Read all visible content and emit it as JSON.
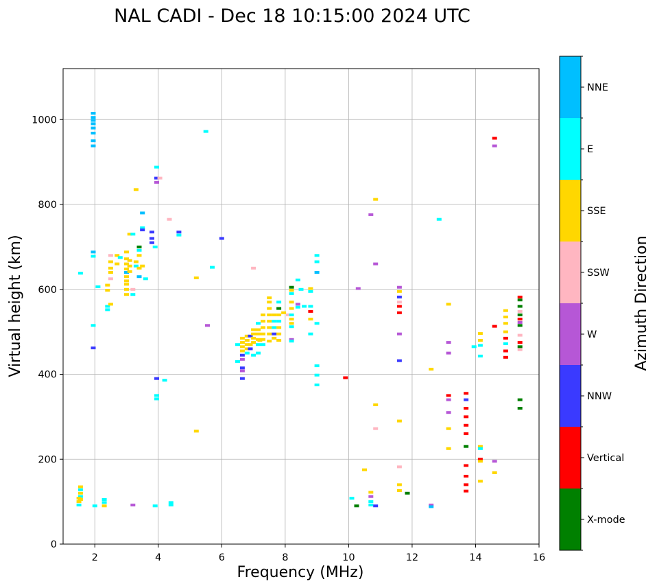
{
  "chart_data": {
    "type": "scatter",
    "title": "NAL CADI - Dec 18 10:15:00 2024 UTC",
    "xlabel": "Frequency (MHz)",
    "ylabel": "Virtual height (km)",
    "xlim": [
      1,
      16
    ],
    "ylim": [
      0,
      1120
    ],
    "xticks": [
      2,
      4,
      6,
      8,
      10,
      12,
      14,
      16
    ],
    "yticks": [
      0,
      200,
      400,
      600,
      800,
      1000
    ],
    "grid": true,
    "colorbar": {
      "label": "Azimuth Direction",
      "categories": [
        {
          "name": "X-mode",
          "color": "#008000"
        },
        {
          "name": "Vertical",
          "color": "#ff0000"
        },
        {
          "name": "NNW",
          "color": "#3a3aff"
        },
        {
          "name": "W",
          "color": "#b657d6"
        },
        {
          "name": "SSW",
          "color": "#ffb6c1"
        },
        {
          "name": "SSE",
          "color": "#ffd700"
        },
        {
          "name": "E",
          "color": "#00ffff"
        },
        {
          "name": "NNE",
          "color": "#00bfff"
        }
      ]
    },
    "points": [
      [
        1.95,
        1015,
        "NNE"
      ],
      [
        1.95,
        1005,
        "NNE"
      ],
      [
        1.95,
        998,
        "NNE"
      ],
      [
        1.95,
        990,
        "NNE"
      ],
      [
        1.95,
        980,
        "NNE"
      ],
      [
        1.95,
        968,
        "NNE"
      ],
      [
        1.95,
        950,
        "NNE"
      ],
      [
        1.95,
        938,
        "NNE"
      ],
      [
        1.95,
        688,
        "NNE"
      ],
      [
        1.95,
        678,
        "E"
      ],
      [
        1.95,
        515,
        "E"
      ],
      [
        1.95,
        462,
        "NNW"
      ],
      [
        1.55,
        638,
        "E"
      ],
      [
        1.55,
        135,
        "SSE"
      ],
      [
        1.55,
        128,
        "E"
      ],
      [
        1.55,
        120,
        "SSE"
      ],
      [
        1.55,
        112,
        "E"
      ],
      [
        1.55,
        105,
        "SSE"
      ],
      [
        1.5,
        108,
        "SSE"
      ],
      [
        1.5,
        100,
        "SSE"
      ],
      [
        1.5,
        92,
        "E"
      ],
      [
        2.1,
        606,
        "E"
      ],
      [
        2.3,
        105,
        "E"
      ],
      [
        2.3,
        98,
        "E"
      ],
      [
        2.3,
        90,
        "SSE"
      ],
      [
        2.0,
        90,
        "E"
      ],
      [
        2.4,
        610,
        "SSE"
      ],
      [
        2.4,
        598,
        "SSE"
      ],
      [
        2.4,
        560,
        "E"
      ],
      [
        2.4,
        552,
        "E"
      ],
      [
        2.5,
        565,
        "SSE"
      ],
      [
        2.5,
        680,
        "SSW"
      ],
      [
        2.5,
        665,
        "SSE"
      ],
      [
        2.5,
        650,
        "SSE"
      ],
      [
        2.5,
        640,
        "SSE"
      ],
      [
        2.5,
        625,
        "SSW"
      ],
      [
        2.7,
        680,
        "SSE"
      ],
      [
        2.7,
        660,
        "SSE"
      ],
      [
        2.8,
        675,
        "E"
      ],
      [
        3.0,
        688,
        "SSE"
      ],
      [
        3.0,
        672,
        "SSE"
      ],
      [
        3.0,
        660,
        "SSE"
      ],
      [
        3.0,
        648,
        "SSE"
      ],
      [
        3.0,
        640,
        "NNE"
      ],
      [
        3.0,
        630,
        "SSE"
      ],
      [
        3.0,
        620,
        "SSE"
      ],
      [
        3.0,
        612,
        "SSE"
      ],
      [
        3.0,
        600,
        "SSE"
      ],
      [
        3.0,
        588,
        "SSE"
      ],
      [
        3.1,
        730,
        "SSE"
      ],
      [
        3.1,
        668,
        "SSE"
      ],
      [
        3.1,
        655,
        "SSE"
      ],
      [
        3.1,
        642,
        "SSE"
      ],
      [
        3.2,
        600,
        "SSW"
      ],
      [
        3.2,
        588,
        "E"
      ],
      [
        3.2,
        730,
        "E"
      ],
      [
        3.3,
        835,
        "SSE"
      ],
      [
        3.3,
        665,
        "SSE"
      ],
      [
        3.3,
        655,
        "E"
      ],
      [
        3.4,
        700,
        "X-mode"
      ],
      [
        3.4,
        692,
        "E"
      ],
      [
        3.4,
        680,
        "SSE"
      ],
      [
        3.4,
        650,
        "SSE"
      ],
      [
        3.4,
        630,
        "NNE"
      ],
      [
        3.5,
        780,
        "NNE"
      ],
      [
        3.5,
        745,
        "E"
      ],
      [
        3.5,
        740,
        "NNW"
      ],
      [
        3.5,
        655,
        "SSE"
      ],
      [
        3.6,
        625,
        "E"
      ],
      [
        3.8,
        735,
        "NNW"
      ],
      [
        3.8,
        720,
        "NNW"
      ],
      [
        3.8,
        710,
        "NNW"
      ],
      [
        3.9,
        700,
        "E"
      ],
      [
        3.95,
        888,
        "E"
      ],
      [
        3.95,
        862,
        "NNW"
      ],
      [
        4.05,
        862,
        "SSW"
      ],
      [
        3.95,
        852,
        "W"
      ],
      [
        3.95,
        390,
        "NNW"
      ],
      [
        3.95,
        350,
        "E"
      ],
      [
        3.95,
        342,
        "E"
      ],
      [
        4.2,
        386,
        "E"
      ],
      [
        4.4,
        98,
        "E"
      ],
      [
        4.4,
        92,
        "E"
      ],
      [
        3.9,
        90,
        "E"
      ],
      [
        3.2,
        92,
        "W"
      ],
      [
        4.65,
        735,
        "NNW"
      ],
      [
        4.65,
        728,
        "E"
      ],
      [
        4.35,
        765,
        "SSW"
      ],
      [
        5.5,
        972,
        "E"
      ],
      [
        5.7,
        652,
        "E"
      ],
      [
        5.55,
        515,
        "W"
      ],
      [
        5.2,
        627,
        "SSE"
      ],
      [
        5.2,
        266,
        "SSE"
      ],
      [
        6.0,
        720,
        "NNW"
      ],
      [
        6.5,
        470,
        "E"
      ],
      [
        6.5,
        430,
        "E"
      ],
      [
        6.65,
        485,
        "SSE"
      ],
      [
        6.65,
        475,
        "SSE"
      ],
      [
        6.65,
        465,
        "SSE"
      ],
      [
        6.65,
        455,
        "SSE"
      ],
      [
        6.65,
        445,
        "NNW"
      ],
      [
        6.65,
        435,
        "W"
      ],
      [
        6.65,
        415,
        "NNW"
      ],
      [
        6.65,
        408,
        "W"
      ],
      [
        6.65,
        390,
        "NNW"
      ],
      [
        6.8,
        490,
        "SSE"
      ],
      [
        6.8,
        480,
        "SSE"
      ],
      [
        6.8,
        470,
        "SSE"
      ],
      [
        6.8,
        460,
        "SSE"
      ],
      [
        6.8,
        450,
        "E"
      ],
      [
        6.9,
        490,
        "NNW"
      ],
      [
        6.9,
        470,
        "SSE"
      ],
      [
        6.9,
        460,
        "NNW"
      ],
      [
        7.0,
        505,
        "SSE"
      ],
      [
        7.0,
        495,
        "SSE"
      ],
      [
        7.0,
        485,
        "SSE"
      ],
      [
        7.0,
        475,
        "SSE"
      ],
      [
        7.0,
        445,
        "E"
      ],
      [
        7.15,
        520,
        "E"
      ],
      [
        7.15,
        505,
        "SSE"
      ],
      [
        7.15,
        495,
        "SSE"
      ],
      [
        7.15,
        482,
        "SSE"
      ],
      [
        7.15,
        470,
        "E"
      ],
      [
        7.15,
        450,
        "E"
      ],
      [
        7.3,
        540,
        "SSE"
      ],
      [
        7.3,
        525,
        "SSE"
      ],
      [
        7.3,
        510,
        "SSE"
      ],
      [
        7.3,
        495,
        "SSE"
      ],
      [
        7.3,
        482,
        "SSE"
      ],
      [
        7.3,
        470,
        "E"
      ],
      [
        7.2,
        480,
        "SSE"
      ],
      [
        7.0,
        650,
        "SSW"
      ],
      [
        7.5,
        580,
        "SSE"
      ],
      [
        7.5,
        570,
        "SSE"
      ],
      [
        7.5,
        555,
        "SSE"
      ],
      [
        7.5,
        540,
        "SSE"
      ],
      [
        7.5,
        525,
        "SSE"
      ],
      [
        7.5,
        510,
        "SSE"
      ],
      [
        7.5,
        495,
        "SSE"
      ],
      [
        7.5,
        478,
        "SSE"
      ],
      [
        7.65,
        540,
        "SSE"
      ],
      [
        7.65,
        525,
        "E"
      ],
      [
        7.65,
        510,
        "E"
      ],
      [
        7.65,
        495,
        "NNW"
      ],
      [
        7.65,
        485,
        "SSE"
      ],
      [
        7.8,
        570,
        "E"
      ],
      [
        7.8,
        555,
        "X-mode"
      ],
      [
        7.8,
        540,
        "SSE"
      ],
      [
        7.8,
        525,
        "E"
      ],
      [
        7.8,
        510,
        "SSE"
      ],
      [
        7.8,
        495,
        "SSE"
      ],
      [
        7.8,
        480,
        "SSE"
      ],
      [
        7.95,
        545,
        "SSE"
      ],
      [
        8.1,
        540,
        "SSW"
      ],
      [
        8.2,
        605,
        "X-mode"
      ],
      [
        8.2,
        598,
        "SSE"
      ],
      [
        8.2,
        590,
        "E"
      ],
      [
        8.2,
        570,
        "SSE"
      ],
      [
        8.2,
        555,
        "SSE"
      ],
      [
        8.2,
        540,
        "E"
      ],
      [
        8.2,
        530,
        "SSE"
      ],
      [
        8.2,
        520,
        "SSE"
      ],
      [
        8.2,
        512,
        "E"
      ],
      [
        8.2,
        482,
        "W"
      ],
      [
        8.2,
        478,
        "E"
      ],
      [
        8.4,
        622,
        "E"
      ],
      [
        8.4,
        565,
        "W"
      ],
      [
        8.4,
        558,
        "E"
      ],
      [
        8.5,
        600,
        "E"
      ],
      [
        8.6,
        560,
        "E"
      ],
      [
        8.8,
        602,
        "SSE"
      ],
      [
        8.8,
        595,
        "E"
      ],
      [
        8.8,
        560,
        "E"
      ],
      [
        8.8,
        548,
        "Vertical"
      ],
      [
        8.8,
        530,
        "SSE"
      ],
      [
        8.8,
        495,
        "E"
      ],
      [
        9.0,
        680,
        "E"
      ],
      [
        9.0,
        665,
        "E"
      ],
      [
        9.0,
        640,
        "NNE"
      ],
      [
        9.0,
        520,
        "E"
      ],
      [
        9.0,
        420,
        "E"
      ],
      [
        9.0,
        398,
        "E"
      ],
      [
        9.0,
        375,
        "E"
      ],
      [
        9.9,
        392,
        "Vertical"
      ],
      [
        10.1,
        108,
        "E"
      ],
      [
        10.25,
        90,
        "X-mode"
      ],
      [
        10.3,
        602,
        "W"
      ],
      [
        10.5,
        175,
        "SSE"
      ],
      [
        10.7,
        122,
        "SSE"
      ],
      [
        10.7,
        112,
        "W"
      ],
      [
        10.7,
        100,
        "E"
      ],
      [
        10.7,
        92,
        "E"
      ],
      [
        10.85,
        90,
        "NNW"
      ],
      [
        10.7,
        776,
        "W"
      ],
      [
        10.85,
        812,
        "SSE"
      ],
      [
        10.85,
        660,
        "W"
      ],
      [
        10.85,
        328,
        "SSE"
      ],
      [
        10.85,
        272,
        "SSW"
      ],
      [
        11.6,
        605,
        "W"
      ],
      [
        11.6,
        595,
        "SSE"
      ],
      [
        11.6,
        582,
        "NNW"
      ],
      [
        11.6,
        570,
        "SSW"
      ],
      [
        11.6,
        560,
        "Vertical"
      ],
      [
        11.6,
        545,
        "Vertical"
      ],
      [
        11.6,
        495,
        "W"
      ],
      [
        11.6,
        432,
        "NNW"
      ],
      [
        11.6,
        290,
        "SSE"
      ],
      [
        11.6,
        182,
        "SSW"
      ],
      [
        11.6,
        140,
        "SSE"
      ],
      [
        11.6,
        126,
        "SSE"
      ],
      [
        11.85,
        120,
        "X-mode"
      ],
      [
        12.6,
        412,
        "SSE"
      ],
      [
        12.6,
        92,
        "W"
      ],
      [
        12.6,
        88,
        "NNE"
      ],
      [
        12.85,
        765,
        "E"
      ],
      [
        13.15,
        565,
        "SSE"
      ],
      [
        13.15,
        475,
        "W"
      ],
      [
        13.15,
        450,
        "W"
      ],
      [
        13.15,
        350,
        "Vertical"
      ],
      [
        13.15,
        340,
        "W"
      ],
      [
        13.15,
        310,
        "W"
      ],
      [
        13.15,
        272,
        "SSE"
      ],
      [
        13.15,
        225,
        "SSE"
      ],
      [
        13.7,
        355,
        "Vertical"
      ],
      [
        13.7,
        340,
        "NNW"
      ],
      [
        13.7,
        320,
        "Vertical"
      ],
      [
        13.7,
        300,
        "Vertical"
      ],
      [
        13.7,
        280,
        "Vertical"
      ],
      [
        13.7,
        260,
        "Vertical"
      ],
      [
        13.7,
        230,
        "X-mode"
      ],
      [
        13.7,
        185,
        "Vertical"
      ],
      [
        13.7,
        160,
        "Vertical"
      ],
      [
        13.7,
        140,
        "Vertical"
      ],
      [
        13.7,
        125,
        "Vertical"
      ],
      [
        13.95,
        465,
        "E"
      ],
      [
        14.15,
        496,
        "SSE"
      ],
      [
        14.15,
        480,
        "SSE"
      ],
      [
        14.15,
        468,
        "E"
      ],
      [
        14.15,
        443,
        "E"
      ],
      [
        14.15,
        230,
        "SSE"
      ],
      [
        14.15,
        225,
        "E"
      ],
      [
        14.15,
        200,
        "Vertical"
      ],
      [
        14.15,
        195,
        "SSE"
      ],
      [
        14.15,
        148,
        "SSE"
      ],
      [
        14.6,
        956,
        "Vertical"
      ],
      [
        14.6,
        938,
        "W"
      ],
      [
        14.6,
        513,
        "Vertical"
      ],
      [
        14.6,
        195,
        "W"
      ],
      [
        14.6,
        168,
        "SSE"
      ],
      [
        14.95,
        550,
        "SSE"
      ],
      [
        14.95,
        535,
        "SSE"
      ],
      [
        14.95,
        520,
        "SSE"
      ],
      [
        14.95,
        500,
        "SSE"
      ],
      [
        14.95,
        485,
        "Vertical"
      ],
      [
        14.95,
        472,
        "E"
      ],
      [
        14.95,
        455,
        "Vertical"
      ],
      [
        14.95,
        440,
        "Vertical"
      ],
      [
        15.4,
        582,
        "Vertical"
      ],
      [
        15.4,
        575,
        "X-mode"
      ],
      [
        15.4,
        560,
        "X-mode"
      ],
      [
        15.4,
        548,
        "SSW"
      ],
      [
        15.4,
        540,
        "X-mode"
      ],
      [
        15.4,
        530,
        "Vertical"
      ],
      [
        15.4,
        522,
        "W"
      ],
      [
        15.4,
        515,
        "X-mode"
      ],
      [
        15.4,
        492,
        "SSW"
      ],
      [
        15.4,
        475,
        "Vertical"
      ],
      [
        15.4,
        465,
        "X-mode"
      ],
      [
        15.4,
        458,
        "SSW"
      ],
      [
        15.4,
        340,
        "X-mode"
      ],
      [
        15.4,
        320,
        "X-mode"
      ]
    ]
  }
}
